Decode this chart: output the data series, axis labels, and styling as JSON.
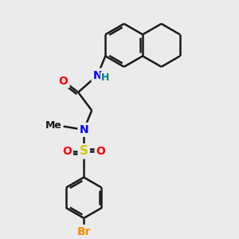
{
  "background_color": "#ebebeb",
  "bond_color": "#1a1a1a",
  "bond_width": 1.8,
  "atom_colors": {
    "N": "#0000ff",
    "H": "#008080",
    "O": "#ff0000",
    "S": "#cccc00",
    "Br": "#ff8c00",
    "C": "#1a1a1a"
  },
  "font_size": 9,
  "figsize": [
    3.0,
    3.0
  ],
  "dpi": 100
}
